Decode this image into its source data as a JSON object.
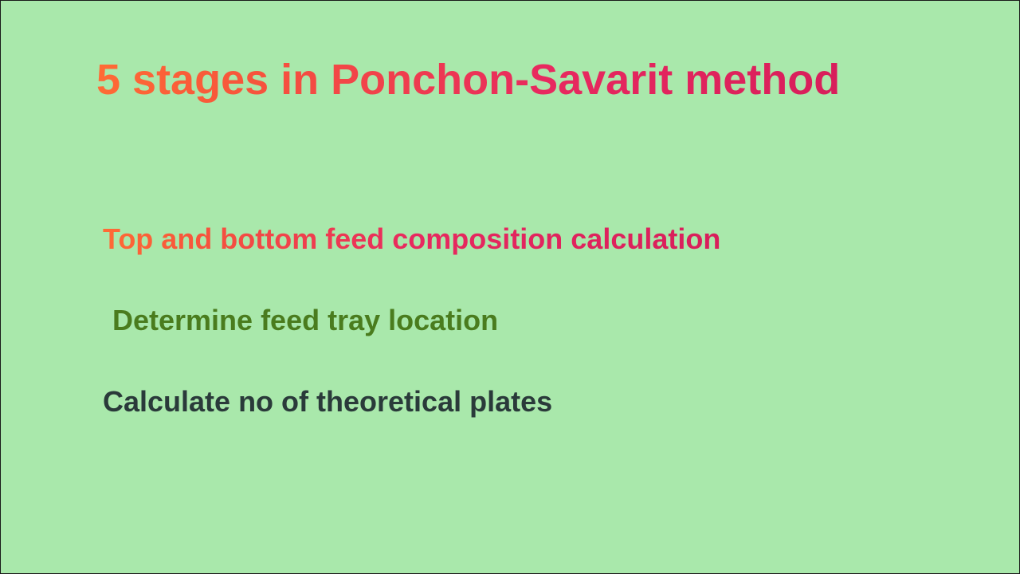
{
  "slide": {
    "background_color": "#a9e8ab",
    "border_color": "#1a1a1a",
    "title": {
      "text": "5 stages in Ponchon-Savarit method",
      "fontsize": 54,
      "font_weight": "bold",
      "gradient_start": "#ff6b35",
      "gradient_end": "#d81e5b"
    },
    "items": [
      {
        "text": "Top and bottom feed composition calculation",
        "fontsize": 36,
        "font_weight": "bold",
        "color_type": "gradient",
        "gradient_start": "#ff6b35",
        "gradient_end": "#d81e5b"
      },
      {
        "text": "Determine feed tray location",
        "fontsize": 36,
        "font_weight": "bold",
        "color_type": "solid",
        "color": "#4a7c1e"
      },
      {
        "text": "Calculate no of theoretical plates",
        "fontsize": 36,
        "font_weight": "bold",
        "color_type": "solid",
        "color": "#2a3a3a"
      }
    ]
  }
}
